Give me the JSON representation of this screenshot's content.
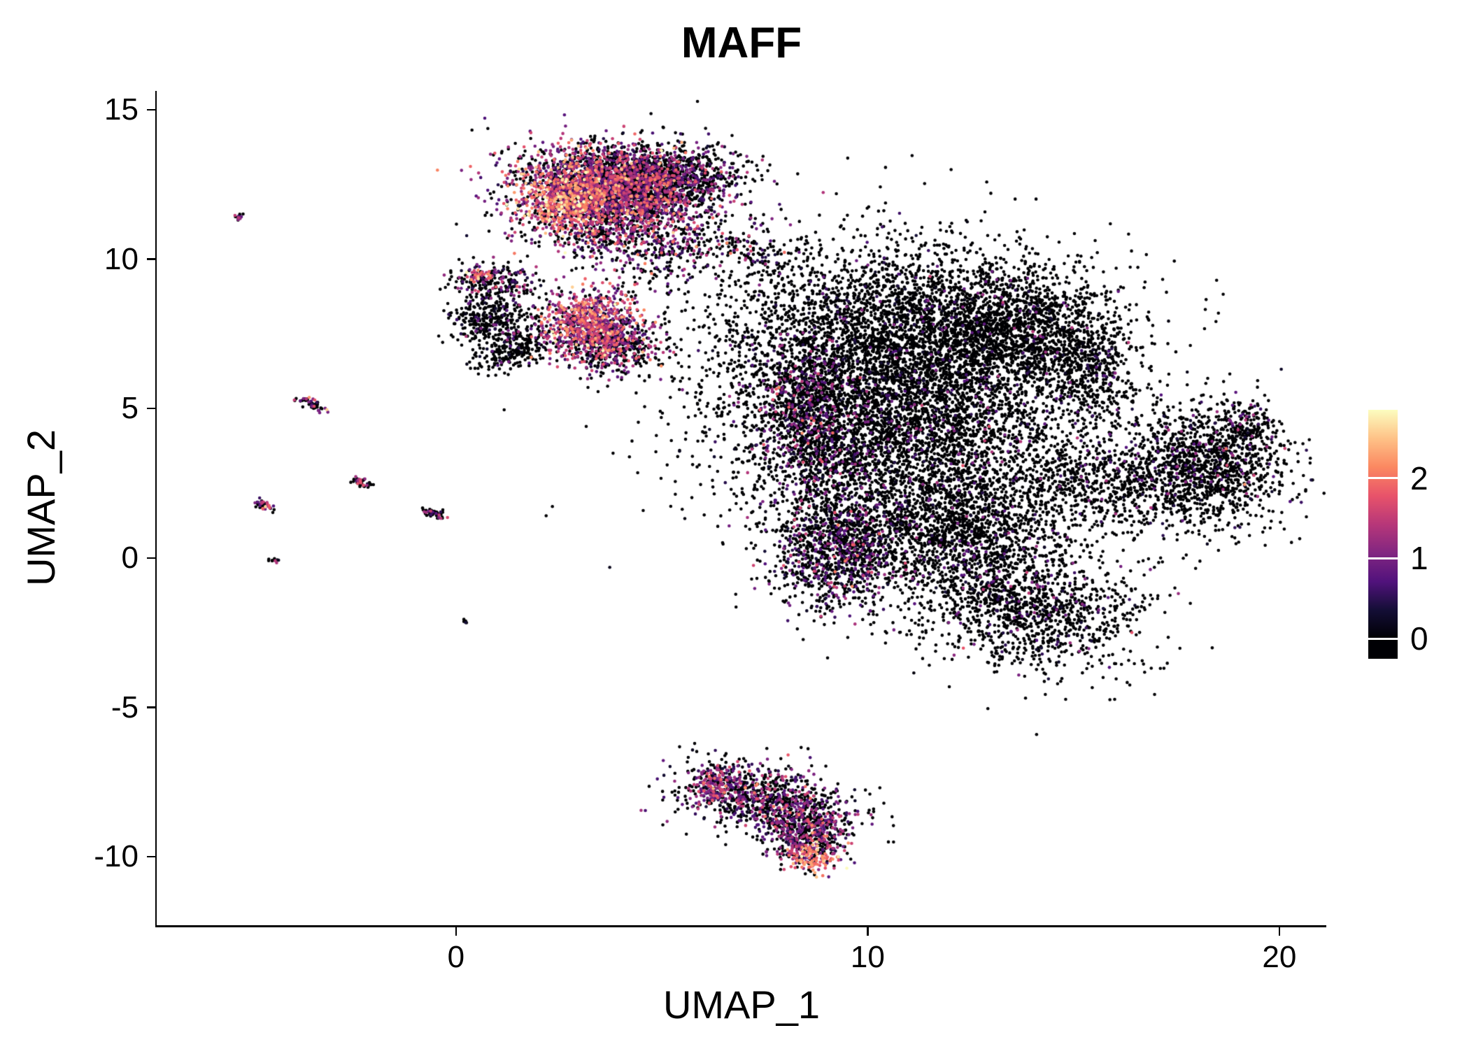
{
  "chart_data": {
    "type": "scatter",
    "title": "MAFF",
    "xlabel": "UMAP_1",
    "ylabel": "UMAP_2",
    "xlim": [
      -7.27,
      21.14
    ],
    "ylim": [
      -12.29,
      15.63
    ],
    "xticks": [
      0,
      10,
      20
    ],
    "yticks": [
      15,
      10,
      5,
      0,
      -5,
      -10
    ],
    "grid": false,
    "background": "#ffffff",
    "axis_color": "#000000",
    "text_color": "#000000",
    "point_radius_px": 2.3,
    "seed": 42,
    "expr_max": 2.85,
    "colormap": {
      "name": "magma",
      "stops": [
        [
          0.0,
          "#000004"
        ],
        [
          0.125,
          "#140e36"
        ],
        [
          0.25,
          "#51127c"
        ],
        [
          0.375,
          "#822681"
        ],
        [
          0.5,
          "#b73779"
        ],
        [
          0.625,
          "#e8536a"
        ],
        [
          0.75,
          "#fb8861"
        ],
        [
          0.875,
          "#fec287"
        ],
        [
          1.0,
          "#fcfdbf"
        ]
      ]
    },
    "colorbar": {
      "ticks": [
        0,
        1,
        2
      ],
      "bar_range": [
        -0.25,
        2.85
      ],
      "tick_color": "#ffffff"
    },
    "clusters": [
      {
        "name": "top-core",
        "n": 2600,
        "x": 3.7,
        "y": 12.4,
        "sx": 1.15,
        "sy": 0.7,
        "rot": -8,
        "p0": 0.3,
        "mu": 1.1,
        "sd": 0.65
      },
      {
        "name": "top-bright",
        "n": 450,
        "x": 2.7,
        "y": 11.9,
        "sx": 0.55,
        "sy": 0.5,
        "rot": 0,
        "p0": 0.08,
        "mu": 1.9,
        "sd": 0.5
      },
      {
        "name": "top-right-dark",
        "n": 1000,
        "x": 5.1,
        "y": 12.7,
        "sx": 0.85,
        "sy": 0.5,
        "rot": 5,
        "p0": 0.72,
        "mu": 0.7,
        "sd": 0.5
      },
      {
        "name": "top-below",
        "n": 420,
        "x": 3.8,
        "y": 10.9,
        "sx": 1.0,
        "sy": 0.6,
        "rot": 0,
        "p0": 0.45,
        "mu": 1.0,
        "sd": 0.6
      },
      {
        "name": "top-trail",
        "n": 150,
        "x": 5.0,
        "y": 10.2,
        "sx": 0.7,
        "sy": 0.6,
        "rot": -30,
        "p0": 0.6,
        "mu": 0.8,
        "sd": 0.5
      },
      {
        "name": "small-nine",
        "n": 240,
        "x": 1.0,
        "y": 9.2,
        "sx": 0.5,
        "sy": 0.33,
        "rot": -10,
        "p0": 0.62,
        "mu": 0.8,
        "sd": 0.5
      },
      {
        "name": "small-nine-tip",
        "n": 45,
        "x": 0.55,
        "y": 9.45,
        "sx": 0.18,
        "sy": 0.12,
        "rot": 0,
        "p0": 0.15,
        "mu": 1.7,
        "sd": 0.5
      },
      {
        "name": "hook-a",
        "n": 330,
        "x": 0.85,
        "y": 7.95,
        "sx": 0.5,
        "sy": 0.42,
        "rot": 0,
        "p0": 0.86,
        "mu": 0.5,
        "sd": 0.4
      },
      {
        "name": "hook-b",
        "n": 230,
        "x": 1.45,
        "y": 6.95,
        "sx": 0.55,
        "sy": 0.3,
        "rot": 25,
        "p0": 0.86,
        "mu": 0.5,
        "sd": 0.4
      },
      {
        "name": "warm-mid-core",
        "n": 950,
        "x": 3.3,
        "y": 7.8,
        "sx": 0.62,
        "sy": 0.58,
        "rot": 0,
        "p0": 0.22,
        "mu": 1.35,
        "sd": 0.6
      },
      {
        "name": "warm-mid-edge",
        "n": 380,
        "x": 3.9,
        "y": 7.0,
        "sx": 0.55,
        "sy": 0.42,
        "rot": 20,
        "p0": 0.55,
        "mu": 0.9,
        "sd": 0.5
      },
      {
        "name": "bridge",
        "n": 220,
        "x": 6.6,
        "y": 10.4,
        "sx": 1.1,
        "sy": 0.45,
        "rot": -12,
        "p0": 0.72,
        "mu": 0.8,
        "sd": 0.5
      },
      {
        "name": "main-upper",
        "n": 3600,
        "x": 10.6,
        "y": 7.4,
        "sx": 2.1,
        "sy": 1.55,
        "rot": 0,
        "p0": 0.93,
        "mu": 0.5,
        "sd": 0.4
      },
      {
        "name": "main-upper-right",
        "n": 1300,
        "x": 13.6,
        "y": 7.7,
        "sx": 1.25,
        "sy": 1.15,
        "rot": 0,
        "p0": 0.94,
        "mu": 0.5,
        "sd": 0.4
      },
      {
        "name": "main-right-arm",
        "n": 450,
        "x": 15.4,
        "y": 6.3,
        "sx": 0.6,
        "sy": 1.0,
        "rot": 15,
        "p0": 0.93,
        "mu": 0.5,
        "sd": 0.4
      },
      {
        "name": "main-mid",
        "n": 3100,
        "x": 10.9,
        "y": 4.1,
        "sx": 2.15,
        "sy": 1.5,
        "rot": 0,
        "p0": 0.9,
        "mu": 0.55,
        "sd": 0.45
      },
      {
        "name": "main-left-arm",
        "n": 950,
        "x": 8.6,
        "y": 4.6,
        "sx": 0.7,
        "sy": 1.35,
        "rot": 8,
        "p0": 0.62,
        "mu": 0.8,
        "sd": 0.55
      },
      {
        "name": "main-lower-left",
        "n": 1150,
        "x": 9.3,
        "y": 0.3,
        "sx": 0.8,
        "sy": 1.05,
        "rot": 0,
        "p0": 0.68,
        "mu": 0.75,
        "sd": 0.5
      },
      {
        "name": "main-lower-mid",
        "n": 1500,
        "x": 12.1,
        "y": 0.9,
        "sx": 1.5,
        "sy": 1.05,
        "rot": 0,
        "p0": 0.92,
        "mu": 0.5,
        "sd": 0.4
      },
      {
        "name": "main-lower-right",
        "n": 1250,
        "x": 13.9,
        "y": -1.7,
        "sx": 1.35,
        "sy": 0.95,
        "rot": -20,
        "p0": 0.9,
        "mu": 0.55,
        "sd": 0.45
      },
      {
        "name": "main-right-bridge",
        "n": 520,
        "x": 15.6,
        "y": 2.4,
        "sx": 1.05,
        "sy": 0.7,
        "rot": -30,
        "p0": 0.92,
        "mu": 0.5,
        "sd": 0.4
      },
      {
        "name": "right-blob",
        "n": 1350,
        "x": 18.2,
        "y": 3.1,
        "sx": 0.95,
        "sy": 1.0,
        "rot": 30,
        "p0": 0.88,
        "mu": 0.6,
        "sd": 0.45
      },
      {
        "name": "right-blob-tip",
        "n": 160,
        "x": 19.3,
        "y": 4.5,
        "sx": 0.35,
        "sy": 0.45,
        "rot": 0,
        "p0": 0.85,
        "mu": 0.6,
        "sd": 0.45
      },
      {
        "name": "bottom-main",
        "n": 950,
        "x": 7.5,
        "y": -8.1,
        "sx": 1.05,
        "sy": 0.55,
        "rot": -14,
        "p0": 0.55,
        "mu": 0.85,
        "sd": 0.55
      },
      {
        "name": "bottom-left-edge",
        "n": 160,
        "x": 6.3,
        "y": -7.6,
        "sx": 0.28,
        "sy": 0.32,
        "rot": 0,
        "p0": 0.28,
        "mu": 1.15,
        "sd": 0.5
      },
      {
        "name": "bottom-tail",
        "n": 480,
        "x": 8.5,
        "y": -9.2,
        "sx": 0.55,
        "sy": 0.5,
        "rot": -40,
        "p0": 0.5,
        "mu": 0.9,
        "sd": 0.55
      },
      {
        "name": "bottom-tip",
        "n": 130,
        "x": 8.6,
        "y": -10.0,
        "sx": 0.32,
        "sy": 0.26,
        "rot": 0,
        "p0": 0.12,
        "mu": 1.9,
        "sd": 0.5
      },
      {
        "name": "streak-1",
        "n": 12,
        "x": -5.3,
        "y": 11.4,
        "sx": 0.07,
        "sy": 0.06,
        "rot": 0,
        "p0": 0.35,
        "mu": 1.0,
        "sd": 0.4
      },
      {
        "name": "streak-2",
        "n": 55,
        "x": -3.5,
        "y": 5.15,
        "sx": 0.18,
        "sy": 0.07,
        "rot": -35,
        "p0": 0.6,
        "mu": 0.9,
        "sd": 0.5
      },
      {
        "name": "streak-3",
        "n": 48,
        "x": -2.25,
        "y": 2.5,
        "sx": 0.15,
        "sy": 0.07,
        "rot": -35,
        "p0": 0.55,
        "mu": 0.9,
        "sd": 0.5
      },
      {
        "name": "streak-4",
        "n": 42,
        "x": -4.65,
        "y": 1.75,
        "sx": 0.13,
        "sy": 0.07,
        "rot": -35,
        "p0": 0.35,
        "mu": 1.1,
        "sd": 0.5
      },
      {
        "name": "streak-5",
        "n": 48,
        "x": -0.55,
        "y": 1.5,
        "sx": 0.17,
        "sy": 0.06,
        "rot": -30,
        "p0": 0.6,
        "mu": 0.8,
        "sd": 0.5
      },
      {
        "name": "dot-1",
        "n": 10,
        "x": -4.4,
        "y": -0.1,
        "sx": 0.06,
        "sy": 0.05,
        "rot": 0,
        "p0": 0.4,
        "mu": 1.0,
        "sd": 0.4
      },
      {
        "name": "dot-2",
        "n": 6,
        "x": 0.2,
        "y": -2.1,
        "sx": 0.05,
        "sy": 0.04,
        "rot": 0,
        "p0": 0.8,
        "mu": 0.4,
        "sd": 0.3
      },
      {
        "name": "sparse-main",
        "n": 350,
        "x": 11.5,
        "y": 4.5,
        "sx": 3.4,
        "sy": 3.0,
        "rot": 0,
        "p0": 0.9,
        "mu": 0.5,
        "sd": 0.4
      },
      {
        "name": "sparse-top",
        "n": 120,
        "x": 4.0,
        "y": 12.0,
        "sx": 1.8,
        "sy": 1.2,
        "rot": 0,
        "p0": 0.55,
        "mu": 0.9,
        "sd": 0.5
      }
    ]
  }
}
